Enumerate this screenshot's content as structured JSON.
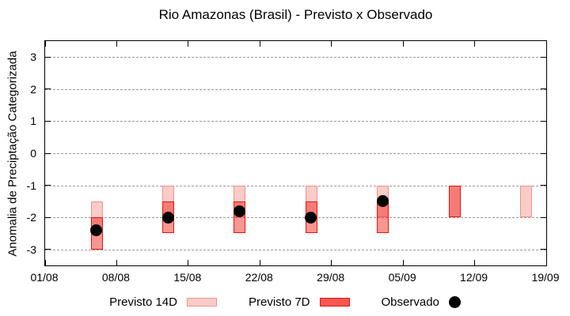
{
  "title": "Rio Amazonas (Brasil) - Previsto x Observado",
  "legend": {
    "previsto14_label": "Previsto 14D",
    "previsto7_label": "Previsto 7D",
    "observado_label": "Observado"
  },
  "colors": {
    "previsto14_fill": "rgba(240,85,75,0.30)",
    "previsto14_border": "#ef9484",
    "previsto7_fill": "rgba(243,32,22,0.47)",
    "previsto7_border": "#e81410",
    "observado": "#000000",
    "grid": "#999999",
    "axis": "#000000"
  },
  "chart_data": {
    "type": "bar",
    "subtype": "range-bars-with-scatter-overlay",
    "title": "Rio Amazonas (Brasil) - Previsto x Observado",
    "xlabel": "",
    "ylabel": "Anomalia de Preciptação Categorizada",
    "ylim": [
      -3.5,
      3.5
    ],
    "yticks": [
      3,
      2,
      1,
      0,
      -1,
      -2,
      -3
    ],
    "grid": true,
    "legend_position": "bottom-center",
    "x_axis": {
      "tick_labels": [
        "01/08",
        "08/08",
        "15/08",
        "22/08",
        "29/08",
        "05/09",
        "12/09",
        "19/09"
      ],
      "tick_days": [
        0,
        7,
        14,
        21,
        28,
        35,
        42,
        49
      ],
      "span_days": 49
    },
    "series": [
      {
        "name": "Previsto 14D",
        "type": "range-bar",
        "points": [
          {
            "day": 5,
            "date": "06/08",
            "high": -1.5,
            "low": -2.5
          },
          {
            "day": 12,
            "date": "13/08",
            "high": -1.0,
            "low": -2.0
          },
          {
            "day": 19,
            "date": "20/08",
            "high": -1.0,
            "low": -2.0
          },
          {
            "day": 26,
            "date": "27/08",
            "high": -1.0,
            "low": -2.0
          },
          {
            "day": 33,
            "date": "03/09",
            "high": -1.0,
            "low": -2.0
          },
          {
            "day": 40,
            "date": "10/09",
            "high": -1.0,
            "low": -2.0
          },
          {
            "day": 47,
            "date": "17/09",
            "high": -1.0,
            "low": -2.0
          }
        ]
      },
      {
        "name": "Previsto 7D",
        "type": "range-bar",
        "points": [
          {
            "day": 5,
            "date": "06/08",
            "high": -2.0,
            "low": -3.0
          },
          {
            "day": 12,
            "date": "13/08",
            "high": -1.5,
            "low": -2.5
          },
          {
            "day": 19,
            "date": "20/08",
            "high": -1.5,
            "low": -2.5
          },
          {
            "day": 26,
            "date": "27/08",
            "high": -1.5,
            "low": -2.5
          },
          {
            "day": 33,
            "date": "03/09",
            "high": -1.5,
            "low": -2.5
          },
          {
            "day": 40,
            "date": "10/09",
            "high": -1.0,
            "low": -2.0
          }
        ]
      },
      {
        "name": "Observado",
        "type": "scatter",
        "points": [
          {
            "day": 5,
            "date": "06/08",
            "value": -2.4
          },
          {
            "day": 12,
            "date": "13/08",
            "value": -2.0
          },
          {
            "day": 19,
            "date": "20/08",
            "value": -1.8
          },
          {
            "day": 26,
            "date": "27/08",
            "value": -2.0
          },
          {
            "day": 33,
            "date": "03/09",
            "value": -1.5
          }
        ]
      }
    ]
  }
}
